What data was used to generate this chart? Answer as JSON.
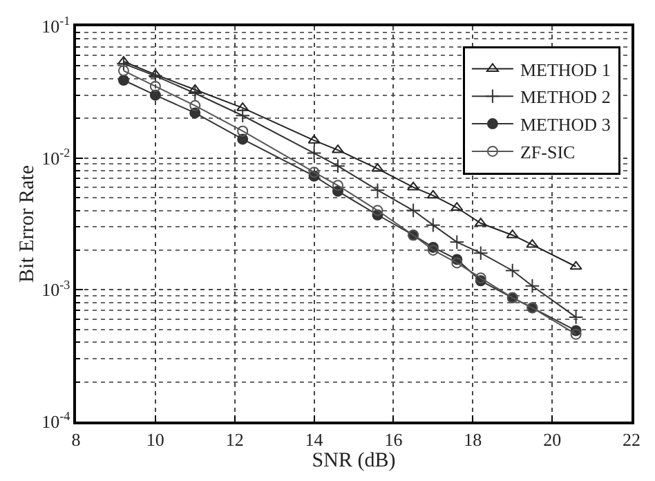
{
  "chart_data": {
    "type": "line",
    "xlabel": "SNR (dB)",
    "ylabel": "Bit Error Rate",
    "log": "y",
    "x": [
      9.2,
      10,
      11,
      12.2,
      14,
      14.6,
      15.6,
      16.5,
      17,
      17.6,
      18.2,
      19,
      19.5,
      20.6
    ],
    "series": [
      {
        "name": "METHOD 1",
        "color": "#222222",
        "marker": "triangle",
        "values": [
          0.054,
          0.043,
          0.033,
          0.024,
          0.0136,
          0.0115,
          0.0083,
          0.006,
          0.0052,
          0.0042,
          0.0032,
          0.0026,
          0.0022,
          0.0015
        ]
      },
      {
        "name": "METHOD 2",
        "color": "#333333",
        "marker": "cross",
        "values": [
          0.052,
          0.042,
          0.031,
          0.021,
          0.0109,
          0.0087,
          0.0057,
          0.004,
          0.0031,
          0.0023,
          0.0019,
          0.0014,
          0.00107,
          0.00062
        ]
      },
      {
        "name": "METHOD 3",
        "color": "#333333",
        "marker": "circle",
        "values": [
          0.039,
          0.03,
          0.022,
          0.0139,
          0.0073,
          0.0056,
          0.0037,
          0.0026,
          0.0021,
          0.0017,
          0.00117,
          0.00087,
          0.00073,
          0.00049
        ]
      },
      {
        "name": "ZF-SIC",
        "color": "#555555",
        "marker": "circle-open",
        "values": [
          0.046,
          0.035,
          0.025,
          0.016,
          0.0078,
          0.0062,
          0.004,
          0.0026,
          0.002,
          0.0016,
          0.00123,
          0.00087,
          0.00073,
          0.00046
        ]
      }
    ],
    "xlim": [
      8,
      22
    ],
    "xticks": [
      8,
      10,
      12,
      14,
      16,
      18,
      20,
      22
    ],
    "ylim": [
      0.0001,
      0.1
    ],
    "yticks": [
      {
        "value": 0.0001,
        "label": "10$^{-4}$"
      },
      {
        "value": 0.001,
        "label": "10$^{-3}$"
      },
      {
        "value": 0.01,
        "label": "10$^{-2}$"
      },
      {
        "value": 0.1,
        "label": "10$^{-1}$"
      }
    ],
    "grid": true,
    "legend": "top right",
    "line_style": "solid"
  }
}
